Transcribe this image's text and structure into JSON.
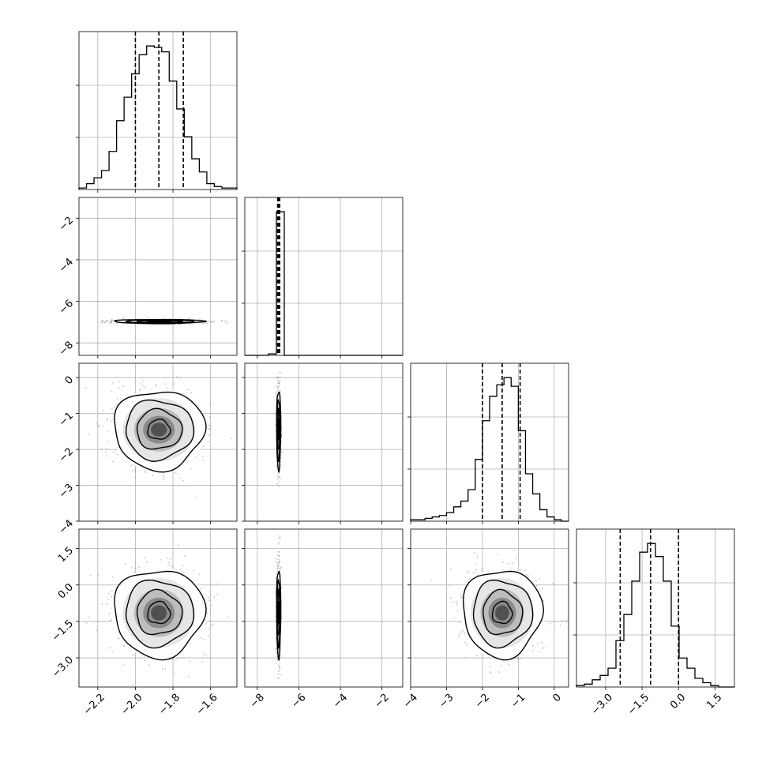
{
  "figure": {
    "type": "corner-plot",
    "grid": true,
    "n_params": 4
  },
  "chart_data": {
    "type": "scatter",
    "title": "",
    "params": [
      {
        "index": 0,
        "range": [
          -2.3,
          -1.46
        ],
        "ticks": [
          "-2.2",
          "-2.0",
          "-1.8",
          "-1.6"
        ]
      },
      {
        "index": 1,
        "range": [
          -8.6,
          -1.0
        ],
        "ticks": [
          "-8",
          "-6",
          "-4",
          "-2"
        ]
      },
      {
        "index": 2,
        "range": [
          -4.0,
          0.4
        ],
        "ticks": [
          "-4",
          "-3",
          "-2",
          "-1",
          "0"
        ]
      },
      {
        "index": 3,
        "range": [
          -4.2,
          2.3
        ],
        "ticks": [
          "-3.0",
          "-1.5",
          "0.0",
          "1.5"
        ]
      }
    ],
    "row_tick_labels": [
      null,
      [
        "-2",
        "-4",
        "-6",
        "-8"
      ],
      [
        "0",
        "-1",
        "-2",
        "-3",
        "-4"
      ],
      [
        "1.5",
        "0.0",
        "-1.5",
        "-3.0"
      ]
    ],
    "marginals": [
      {
        "param": 0,
        "quantiles": [
          -2.0,
          -1.875,
          -1.745
        ],
        "bin_edges": [
          -2.3,
          -2.26,
          -2.22,
          -2.18,
          -2.14,
          -2.1,
          -2.06,
          -2.02,
          -1.98,
          -1.94,
          -1.9,
          -1.86,
          -1.82,
          -1.78,
          -1.74,
          -1.7,
          -1.66,
          -1.62,
          -1.58,
          -1.54,
          -1.5,
          -1.46
        ],
        "counts": [
          1,
          4,
          8,
          13,
          26,
          47,
          63,
          79,
          92,
          98,
          97,
          94,
          74,
          55,
          36,
          21,
          12,
          4,
          2,
          1,
          1
        ]
      },
      {
        "param": 1,
        "quantiles": [
          -7.02,
          -6.97,
          -6.92
        ],
        "bin_edges": [
          -8.6,
          -8.22,
          -7.84,
          -7.46,
          -7.08,
          -6.7,
          -6.32,
          -5.94,
          -5.56,
          -5.18,
          -4.8,
          -4.42,
          -4.04,
          -3.66,
          -3.28,
          -2.9,
          -2.52,
          -2.14,
          -1.76,
          -1.38,
          -1.0
        ],
        "counts": [
          0,
          0,
          0,
          1,
          100,
          0,
          0,
          0,
          0,
          0,
          0,
          0,
          0,
          0,
          0,
          0,
          0,
          0,
          0,
          0
        ]
      },
      {
        "param": 2,
        "quantiles": [
          -2.0,
          -1.45,
          -0.95
        ],
        "bin_edges": [
          -4.0,
          -3.8,
          -3.6,
          -3.4,
          -3.2,
          -3.0,
          -2.8,
          -2.6,
          -2.4,
          -2.2,
          -2.0,
          -1.8,
          -1.6,
          -1.4,
          -1.2,
          -1.0,
          -0.8,
          -0.6,
          -0.4,
          -0.2,
          0.0,
          0.2,
          0.4
        ],
        "counts": [
          1,
          1,
          2,
          3,
          4,
          6,
          10,
          14,
          22,
          43,
          70,
          87,
          95,
          100,
          94,
          63,
          33,
          19,
          8,
          3,
          1,
          0
        ]
      },
      {
        "param": 3,
        "quantiles": [
          -2.4,
          -1.15,
          0.0
        ],
        "bin_edges": [
          -4.2,
          -3.875,
          -3.55,
          -3.225,
          -2.9,
          -2.575,
          -2.25,
          -1.925,
          -1.6,
          -1.275,
          -0.95,
          -0.625,
          -0.3,
          0.025,
          0.35,
          0.675,
          1.0,
          1.325,
          1.65,
          1.975,
          2.3
        ],
        "counts": [
          1,
          2,
          5,
          8,
          13,
          32,
          50,
          73,
          93,
          99,
          90,
          73,
          42,
          20,
          13,
          6,
          3,
          1,
          0,
          0
        ]
      }
    ],
    "pairs": [
      {
        "x_param": 0,
        "y_param": 1,
        "mean": [
          -1.875,
          -6.97
        ],
        "sd": [
          0.12,
          0.05
        ],
        "corr": 0
      },
      {
        "x_param": 0,
        "y_param": 2,
        "mean": [
          -1.875,
          -1.45
        ],
        "sd": [
          0.12,
          0.55
        ],
        "corr": 0
      },
      {
        "x_param": 1,
        "y_param": 2,
        "mean": [
          -6.97,
          -1.45
        ],
        "sd": [
          0.05,
          0.55
        ],
        "corr": 0
      },
      {
        "x_param": 0,
        "y_param": 3,
        "mean": [
          -1.875,
          -1.15
        ],
        "sd": [
          0.12,
          0.9
        ],
        "corr": 0
      },
      {
        "x_param": 1,
        "y_param": 3,
        "mean": [
          -6.97,
          -1.15
        ],
        "sd": [
          0.05,
          0.9
        ],
        "corr": 0
      },
      {
        "x_param": 2,
        "y_param": 3,
        "mean": [
          -1.45,
          -1.15
        ],
        "sd": [
          0.55,
          0.9
        ],
        "corr": 0
      }
    ],
    "contour_levels_sigma": [
      0.5,
      1.0,
      1.5,
      2.0
    ],
    "colors": {
      "line": "#000000",
      "grid": "#b0b0b0",
      "points": "#555555"
    }
  }
}
